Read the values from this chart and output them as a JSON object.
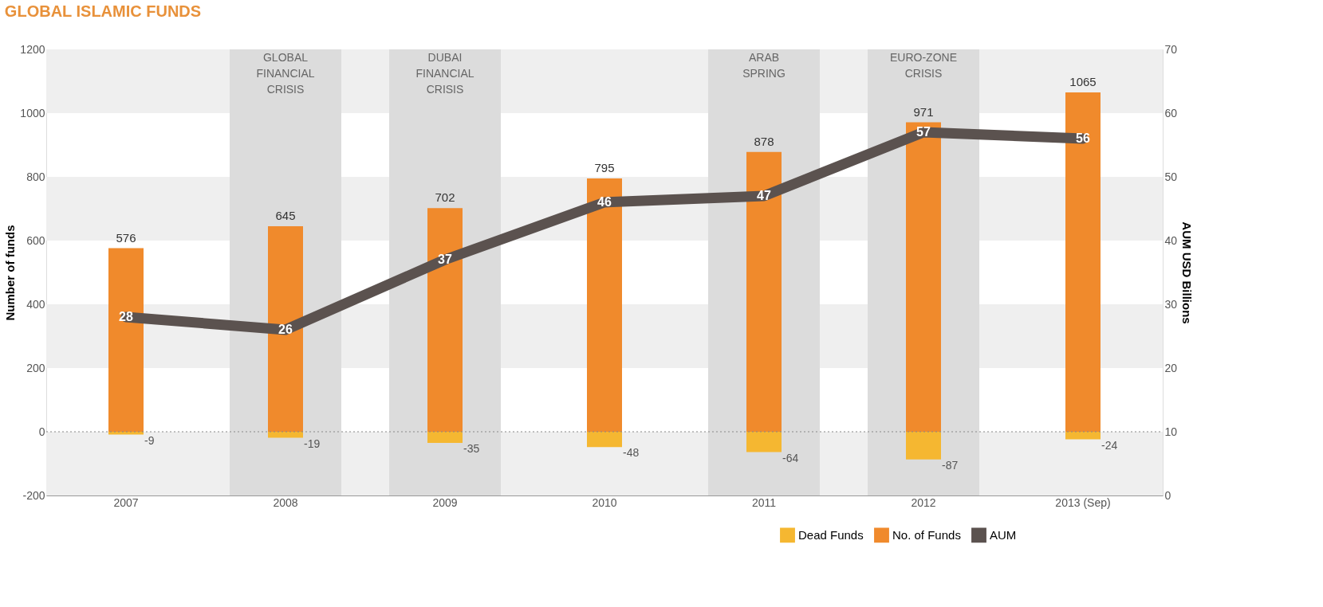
{
  "chart_data": {
    "type": "bar",
    "title": "GLOBAL ISLAMIC FUNDS",
    "ylabel": "Number of funds",
    "y2label": "AUM USD Billions",
    "categories": [
      "2007",
      "2008",
      "2009",
      "2010",
      "2011",
      "2012",
      "2013 (Sep)"
    ],
    "stacked": true,
    "data_labels": true,
    "series": [
      {
        "name": "Dead Funds",
        "color": "#f5b731",
        "values": [
          -9,
          -19,
          -35,
          -48,
          -64,
          -87,
          -24
        ]
      },
      {
        "name": "No. of Funds",
        "color": "#f08a2c",
        "values": [
          576,
          645,
          702,
          795,
          878,
          971,
          1065
        ]
      },
      {
        "name": "AUM",
        "type": "line",
        "axis": "y2",
        "color": "#5b524f",
        "values": [
          28,
          26,
          37,
          46,
          47,
          57,
          56
        ]
      }
    ],
    "ylim": [
      -200,
      1200
    ],
    "yticks": [
      -200,
      0,
      200,
      400,
      600,
      800,
      1000,
      1200
    ],
    "y2lim": [
      0,
      70
    ],
    "y2ticks": [
      0,
      10,
      20,
      30,
      40,
      50,
      60,
      70
    ],
    "bands": [
      {
        "axis": "x",
        "from": "2008",
        "to": "2008",
        "label": "GLOBAL FINANCIAL CRISIS",
        "color": "#dcdcdc"
      },
      {
        "axis": "x",
        "from": "2009",
        "to": "2009",
        "label": "DUBAI FINANCIAL CRISIS",
        "color": "#dcdcdc"
      },
      {
        "axis": "x",
        "from": "2011",
        "to": "2011",
        "label": "ARAB SPRING",
        "color": "#dcdcdc"
      },
      {
        "axis": "x",
        "from": "2012",
        "to": "2012",
        "label": "EURO-ZONE CRISIS",
        "color": "#dcdcdc"
      }
    ],
    "ref_lines": [
      {
        "axis": "y",
        "value": 0,
        "line_style": "dotted",
        "color": "#888888"
      }
    ],
    "legend": "bottom right",
    "line_style": "solid"
  }
}
